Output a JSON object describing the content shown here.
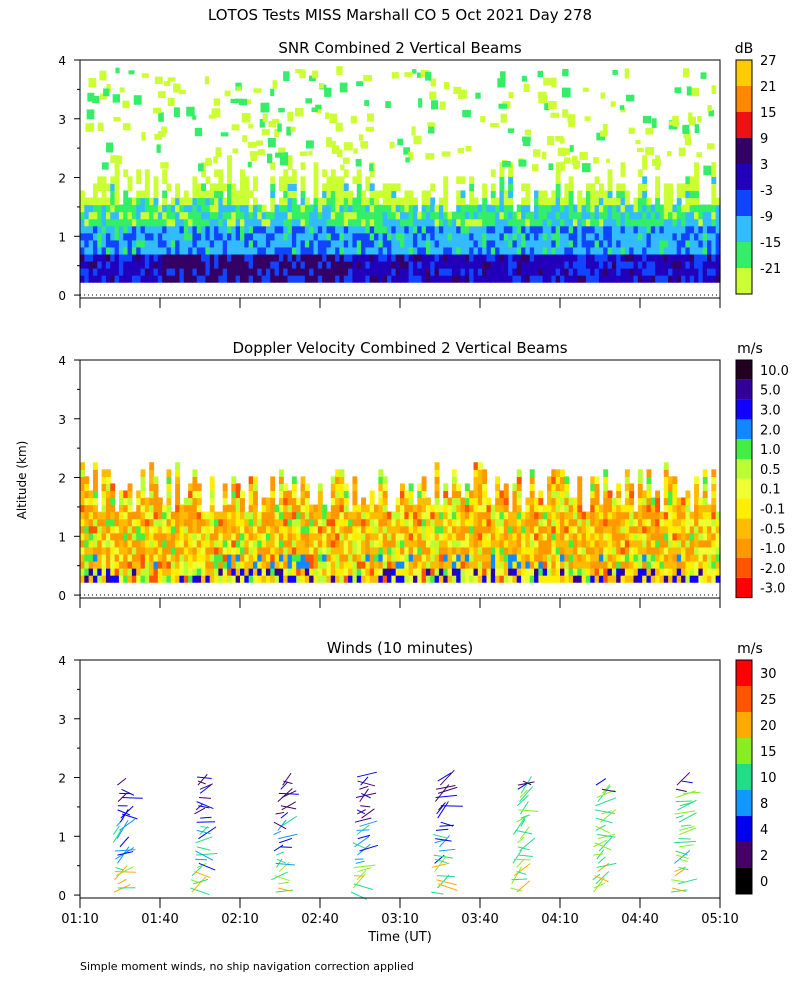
{
  "figure_title": "LOTOS Tests MISS Marshall CO   5 Oct 2021 Day 278",
  "y_axis_label": "Altitude (km)",
  "x_axis_label": "Time (UT)",
  "footnote": "Simple moment winds, no ship navigation correction applied",
  "chart_data": [
    {
      "type": "heatmap",
      "title": "SNR Combined 2 Vertical Beams",
      "units": "dB",
      "ylim": [
        0,
        4
      ],
      "y_ticks": [
        "0",
        "1",
        "2",
        "3",
        "4"
      ],
      "colorbar": [
        "-21",
        "-15",
        "-9",
        "-3",
        "3",
        "9",
        "15",
        "21",
        "27"
      ],
      "colors": [
        "#ccff33",
        "#33ee66",
        "#33bbff",
        "#1144ff",
        "#2200bb",
        "#330066",
        "#ee1111",
        "#ff8800",
        "#ffcc00"
      ]
    },
    {
      "type": "heatmap",
      "title": "Doppler Velocity Combined 2 Vertical Beams",
      "units": "m/s",
      "ylim": [
        0,
        4
      ],
      "y_ticks": [
        "0",
        "1",
        "2",
        "3",
        "4"
      ],
      "colorbar": [
        "-3.0",
        "-2.0",
        "-1.0",
        "-0.5",
        "-0.1",
        "0.1",
        "0.5",
        "1.0",
        "2.0",
        "3.0",
        "5.0",
        "10.0"
      ],
      "colors": [
        "#ff0000",
        "#ff5500",
        "#ff9900",
        "#ffbb00",
        "#ffee00",
        "#eeff33",
        "#bbff33",
        "#44ee44",
        "#1188ff",
        "#1100ff",
        "#330099",
        "#220022"
      ]
    },
    {
      "type": "scatter",
      "title": "Winds (10 minutes)",
      "units": "m/s",
      "ylim": [
        0,
        4
      ],
      "y_ticks": [
        "0",
        "1",
        "2",
        "3",
        "4"
      ],
      "x_ticks": [
        "01:10",
        "01:40",
        "02:10",
        "02:40",
        "03:10",
        "03:40",
        "04:10",
        "04:40",
        "05:10"
      ],
      "colorbar": [
        "0",
        "2",
        "4",
        "8",
        "10",
        "15",
        "20",
        "25",
        "30"
      ],
      "colors": [
        "#000000",
        "#440066",
        "#0000ee",
        "#1199ff",
        "#22dd88",
        "#88ee22",
        "#ffaa00",
        "#ff5500",
        "#ff0000"
      ],
      "profile_times": [
        "01:25",
        "01:55",
        "02:25",
        "02:55",
        "03:25",
        "03:55",
        "04:25",
        "04:55"
      ]
    }
  ]
}
